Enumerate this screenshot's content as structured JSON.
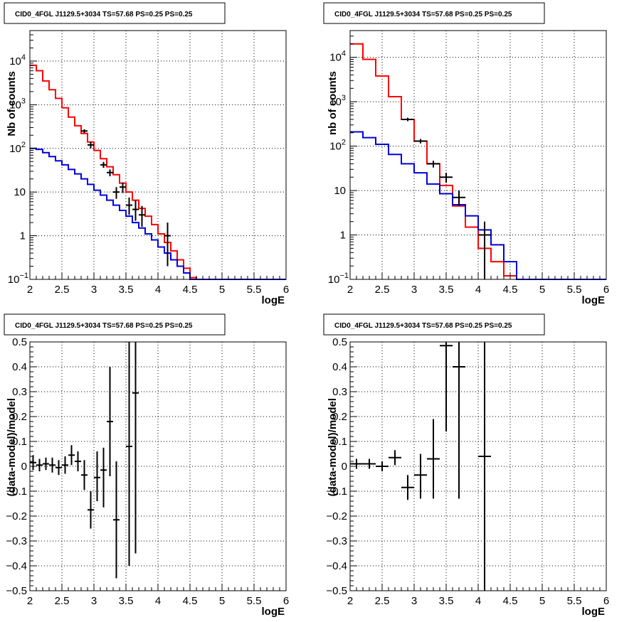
{
  "chart_data": [
    {
      "type": "histogram",
      "title": "CID0_4FGL J1129.5+3034 TS=57.68 PS=0.25 PS=0.25",
      "xlabel": "logE",
      "ylabel": "Nb of counts",
      "xlim": [
        2,
        6
      ],
      "ylim": [
        0.1,
        50000
      ],
      "yscale": "log",
      "x_ticks": [
        "2",
        "2.5",
        "3",
        "3.5",
        "4",
        "4.5",
        "5",
        "5.5",
        "6"
      ],
      "y_ticks": [
        {
          "v": 0.1,
          "label": "10",
          "exp": "−1"
        },
        {
          "v": 1,
          "label": "1",
          "exp": ""
        },
        {
          "v": 10,
          "label": "10",
          "exp": ""
        },
        {
          "v": 100,
          "label": "10",
          "exp": "2"
        },
        {
          "v": 1000,
          "label": "10",
          "exp": "3"
        },
        {
          "v": 10000,
          "label": "10",
          "exp": "4"
        }
      ],
      "grid": true,
      "colors": {
        "total": "#ff0000",
        "background": "#0000dd",
        "data": "#000000"
      },
      "bin_edges": [
        2.0,
        2.1,
        2.2,
        2.3,
        2.4,
        2.5,
        2.6,
        2.7,
        2.8,
        2.9,
        3.0,
        3.1,
        3.2,
        3.3,
        3.4,
        3.5,
        3.6,
        3.7,
        3.8,
        3.9,
        4.0,
        4.1,
        4.2,
        4.3,
        4.4,
        4.5,
        4.6,
        4.7,
        4.8,
        4.9,
        5.0,
        5.1,
        5.2,
        5.3,
        5.4,
        5.5,
        5.6,
        5.7,
        5.8,
        5.9,
        6.0
      ],
      "series": [
        {
          "values": [
            8000,
            6000,
            3500,
            2200,
            1400,
            850,
            520,
            330,
            220,
            140,
            90,
            58,
            38,
            25,
            16,
            10,
            6.5,
            4.2,
            2.8,
            1.8,
            1.1,
            0.7,
            0.45,
            0.28,
            0.18,
            0.11,
            0.1,
            0.1,
            0.1,
            0.1,
            0.1,
            0.1,
            0.1,
            0.1,
            0.1,
            0.1,
            0.1,
            0.1,
            0.1,
            0.1
          ]
        },
        {
          "values": [
            100,
            95,
            80,
            65,
            52,
            42,
            33,
            26,
            20,
            15,
            11,
            8.5,
            6.5,
            5,
            3.8,
            2.8,
            2,
            1.5,
            1.1,
            0.8,
            0.55,
            0.4,
            0.28,
            0.2,
            0.14,
            0.1,
            0.1,
            0.1,
            0.1,
            0.1,
            0.1,
            0.1,
            0.1,
            0.1,
            0.1,
            0.1,
            0.1,
            0.1,
            0.1,
            0.1
          ]
        }
      ],
      "data_points": [
        {
          "x": 2.85,
          "y": 250,
          "xerr": 0.05,
          "ylo": 225,
          "yhi": 275
        },
        {
          "x": 2.95,
          "y": 120,
          "xerr": 0.05,
          "ylo": 100,
          "yhi": 140
        },
        {
          "x": 3.15,
          "y": 42,
          "xerr": 0.05,
          "ylo": 36,
          "yhi": 49
        },
        {
          "x": 3.25,
          "y": 28,
          "xerr": 0.05,
          "ylo": 23,
          "yhi": 33
        },
        {
          "x": 3.35,
          "y": 10,
          "xerr": 0.05,
          "ylo": 7,
          "yhi": 13
        },
        {
          "x": 3.45,
          "y": 13,
          "xerr": 0.05,
          "ylo": 9.5,
          "yhi": 16.5
        },
        {
          "x": 3.55,
          "y": 5,
          "xerr": 0.05,
          "ylo": 3,
          "yhi": 7.5
        },
        {
          "x": 3.65,
          "y": 4,
          "xerr": 0.05,
          "ylo": 2.2,
          "yhi": 6.5
        },
        {
          "x": 3.75,
          "y": 3,
          "xerr": 0.05,
          "ylo": 1.6,
          "yhi": 4.8
        },
        {
          "x": 4.15,
          "y": 1,
          "xerr": 0.05,
          "ylo": 0.2,
          "yhi": 2
        }
      ]
    },
    {
      "type": "histogram",
      "title": "CID0_4FGL J1129.5+3034 TS=57.68 PS=0.25 PS=0.25",
      "xlabel": "logE",
      "ylabel": "nb of counts",
      "xlim": [
        2,
        6
      ],
      "ylim": [
        0.1,
        40000
      ],
      "yscale": "log",
      "x_ticks": [
        "2",
        "2.5",
        "3",
        "3.5",
        "4",
        "4.5",
        "5",
        "5.5",
        "6"
      ],
      "y_ticks": [
        {
          "v": 0.1,
          "label": "10",
          "exp": "−1"
        },
        {
          "v": 1,
          "label": "1",
          "exp": ""
        },
        {
          "v": 10,
          "label": "10",
          "exp": ""
        },
        {
          "v": 100,
          "label": "10",
          "exp": "2"
        },
        {
          "v": 1000,
          "label": "10",
          "exp": "3"
        },
        {
          "v": 10000,
          "label": "10",
          "exp": "4"
        }
      ],
      "grid": true,
      "colors": {
        "total": "#ff0000",
        "background": "#0000dd",
        "data": "#000000"
      },
      "bin_edges": [
        2.0,
        2.2,
        2.4,
        2.6,
        2.8,
        3.0,
        3.2,
        3.4,
        3.6,
        3.8,
        4.0,
        4.2,
        4.4,
        4.6,
        4.8,
        5.0,
        5.2,
        5.4,
        5.6,
        5.8,
        6.0
      ],
      "series": [
        {
          "values": [
            20000,
            9000,
            3800,
            1300,
            400,
            130,
            40,
            13,
            4.5,
            1.5,
            0.5,
            0.25,
            0.12,
            0.1,
            0.1,
            0.1,
            0.1,
            0.1,
            0.1,
            0.1
          ]
        },
        {
          "values": [
            210,
            155,
            110,
            65,
            40,
            25,
            14,
            8.5,
            4.8,
            2.7,
            1.3,
            0.6,
            0.25,
            0.1,
            0.1,
            0.1,
            0.1,
            0.1,
            0.1,
            0.1
          ]
        }
      ],
      "data_points": [
        {
          "x": 2.9,
          "y": 400,
          "xerr": 0.1,
          "ylo": 365,
          "yhi": 435
        },
        {
          "x": 3.1,
          "y": 130,
          "xerr": 0.1,
          "ylo": 115,
          "yhi": 145
        },
        {
          "x": 3.3,
          "y": 40,
          "xerr": 0.1,
          "ylo": 33,
          "yhi": 47
        },
        {
          "x": 3.5,
          "y": 20,
          "xerr": 0.1,
          "ylo": 15,
          "yhi": 25
        },
        {
          "x": 3.7,
          "y": 7,
          "xerr": 0.1,
          "ylo": 4.5,
          "yhi": 10
        },
        {
          "x": 4.1,
          "y": 1,
          "xerr": 0.1,
          "ylo": 0.1,
          "yhi": 2
        }
      ]
    },
    {
      "type": "scatter",
      "title": "CID0_4FGL J1129.5+3034 TS=57.68 PS=0.25 PS=0.25",
      "xlabel": "logE",
      "ylabel": "(data-model)/model",
      "xlim": [
        2,
        6
      ],
      "ylim": [
        -0.5,
        0.5
      ],
      "yscale": "linear",
      "x_ticks": [
        "2",
        "2.5",
        "3",
        "3.5",
        "4",
        "4.5",
        "5",
        "5.5",
        "6"
      ],
      "y_ticks": [
        "−0.5",
        "−0.4",
        "−0.3",
        "−0.2",
        "−0.1",
        "0",
        "0.1",
        "0.2",
        "0.3",
        "0.4",
        "0.5"
      ],
      "grid": true,
      "data_points": [
        {
          "x": 2.05,
          "y": 0.015,
          "xerr": 0.05,
          "ylo": -0.015,
          "yhi": 0.045
        },
        {
          "x": 2.15,
          "y": 0.005,
          "xerr": 0.05,
          "ylo": -0.02,
          "yhi": 0.03
        },
        {
          "x": 2.25,
          "y": 0.01,
          "xerr": 0.05,
          "ylo": -0.015,
          "yhi": 0.035
        },
        {
          "x": 2.35,
          "y": 0.005,
          "xerr": 0.05,
          "ylo": -0.025,
          "yhi": 0.035
        },
        {
          "x": 2.45,
          "y": -0.005,
          "xerr": 0.05,
          "ylo": -0.035,
          "yhi": 0.025
        },
        {
          "x": 2.55,
          "y": 0.005,
          "xerr": 0.05,
          "ylo": -0.03,
          "yhi": 0.04
        },
        {
          "x": 2.65,
          "y": 0.045,
          "xerr": 0.05,
          "ylo": 0.005,
          "yhi": 0.085
        },
        {
          "x": 2.75,
          "y": 0.02,
          "xerr": 0.05,
          "ylo": -0.02,
          "yhi": 0.06
        },
        {
          "x": 2.85,
          "y": -0.035,
          "xerr": 0.05,
          "ylo": -0.095,
          "yhi": 0.025
        },
        {
          "x": 2.95,
          "y": -0.175,
          "xerr": 0.05,
          "ylo": -0.25,
          "yhi": -0.1
        },
        {
          "x": 3.05,
          "y": -0.045,
          "xerr": 0.05,
          "ylo": -0.14,
          "yhi": 0.06
        },
        {
          "x": 3.15,
          "y": -0.015,
          "xerr": 0.05,
          "ylo": -0.165,
          "yhi": 0.075
        },
        {
          "x": 3.25,
          "y": 0.18,
          "xerr": 0.05,
          "ylo": -0.04,
          "yhi": 0.4
        },
        {
          "x": 3.35,
          "y": -0.215,
          "xerr": 0.05,
          "ylo": -0.45,
          "yhi": 0.02
        },
        {
          "x": 3.55,
          "y": 0.08,
          "xerr": 0.05,
          "ylo": -0.4,
          "yhi": 0.5
        },
        {
          "x": 3.65,
          "y": 0.295,
          "xerr": 0.05,
          "ylo": -0.35,
          "yhi": 0.5
        }
      ]
    },
    {
      "type": "scatter",
      "title": "CID0_4FGL J1129.5+3034 TS=57.68 PS=0.25 PS=0.25",
      "xlabel": "logE",
      "ylabel": "(data-model)/model",
      "xlim": [
        2,
        6
      ],
      "ylim": [
        -0.5,
        0.5
      ],
      "yscale": "linear",
      "x_ticks": [
        "2",
        "2.5",
        "3",
        "3.5",
        "4",
        "4.5",
        "5",
        "5.5",
        "6"
      ],
      "y_ticks": [
        "−0.5",
        "−0.4",
        "−0.3",
        "−0.2",
        "−0.1",
        "0",
        "0.1",
        "0.2",
        "0.3",
        "0.4",
        "0.5"
      ],
      "grid": true,
      "data_points": [
        {
          "x": 2.1,
          "y": 0.01,
          "xerr": 0.1,
          "ylo": -0.01,
          "yhi": 0.03
        },
        {
          "x": 2.3,
          "y": 0.01,
          "xerr": 0.1,
          "ylo": -0.01,
          "yhi": 0.03
        },
        {
          "x": 2.5,
          "y": 0.0,
          "xerr": 0.1,
          "ylo": -0.02,
          "yhi": 0.02
        },
        {
          "x": 2.7,
          "y": 0.035,
          "xerr": 0.1,
          "ylo": 0.005,
          "yhi": 0.065
        },
        {
          "x": 2.9,
          "y": -0.085,
          "xerr": 0.1,
          "ylo": -0.135,
          "yhi": -0.035
        },
        {
          "x": 3.1,
          "y": -0.035,
          "xerr": 0.1,
          "ylo": -0.13,
          "yhi": 0.05
        },
        {
          "x": 3.3,
          "y": 0.03,
          "xerr": 0.1,
          "ylo": -0.13,
          "yhi": 0.19
        },
        {
          "x": 3.5,
          "y": 0.485,
          "xerr": 0.1,
          "ylo": 0.14,
          "yhi": 0.5
        },
        {
          "x": 3.7,
          "y": 0.4,
          "xerr": 0.1,
          "ylo": -0.13,
          "yhi": 0.5
        },
        {
          "x": 4.1,
          "y": 0.04,
          "xerr": 0.1,
          "ylo": -0.5,
          "yhi": 0.5
        }
      ]
    }
  ]
}
